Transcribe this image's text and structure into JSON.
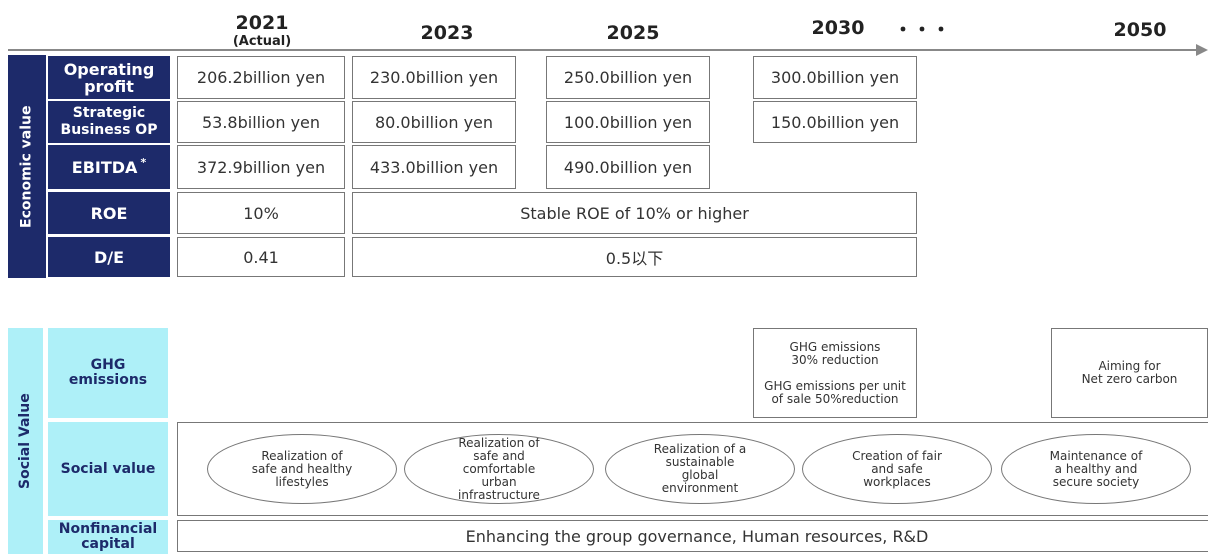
{
  "timeline": [
    {
      "year": "2021",
      "note": "(Actual)"
    },
    {
      "year": "2023"
    },
    {
      "year": "2025"
    },
    {
      "year": "2030"
    },
    {
      "year": "・・・"
    },
    {
      "year": "2050"
    }
  ],
  "economic": {
    "label": "Economic value",
    "rows": [
      {
        "label": [
          "Operating",
          "profit"
        ],
        "cells": [
          "206.2billion yen",
          "230.0billion yen",
          "250.0billion yen",
          "300.0billion yen"
        ]
      },
      {
        "label": [
          "Strategic",
          "Business OP"
        ],
        "cells": [
          "53.8billion yen",
          "80.0billion yen",
          "100.0billion yen",
          "150.0billion yen"
        ]
      },
      {
        "label": [
          "EBITDA"
        ],
        "marker": "*",
        "cells": [
          "372.9billion yen",
          "433.0billion yen",
          "490.0billion yen"
        ]
      },
      {
        "label": [
          "ROE"
        ],
        "cells": [
          "10%",
          "Stable ROE of 10% or higher"
        ]
      },
      {
        "label": [
          "D/E"
        ],
        "cells": [
          "0.41",
          "0.5以下"
        ]
      }
    ]
  },
  "social": {
    "label": "Social Value",
    "rows": [
      {
        "label": [
          "GHG",
          "emissions"
        ],
        "boxes": [
          [
            "GHG emissions",
            "30% reduction",
            "",
            "GHG emissions per unit",
            "of sale  50%reduction"
          ],
          [
            "Aiming for",
            "Net zero carbon"
          ]
        ]
      },
      {
        "label": [
          "Social value"
        ],
        "ovals": [
          [
            "Realization of",
            "safe and healthy",
            "lifestyles"
          ],
          [
            "Realization of",
            "safe and",
            "comfortable",
            "urban",
            "infrastructure"
          ],
          [
            "Realization of a",
            "sustainable",
            "global",
            "environment"
          ],
          [
            "Creation of fair",
            "and safe",
            "workplaces"
          ],
          [
            "Maintenance of",
            "a healthy and",
            "secure society"
          ]
        ]
      },
      {
        "label": [
          "Nonfinancial",
          "capital"
        ],
        "bar": "Enhancing the group governance, Human resources, R&D"
      }
    ]
  }
}
